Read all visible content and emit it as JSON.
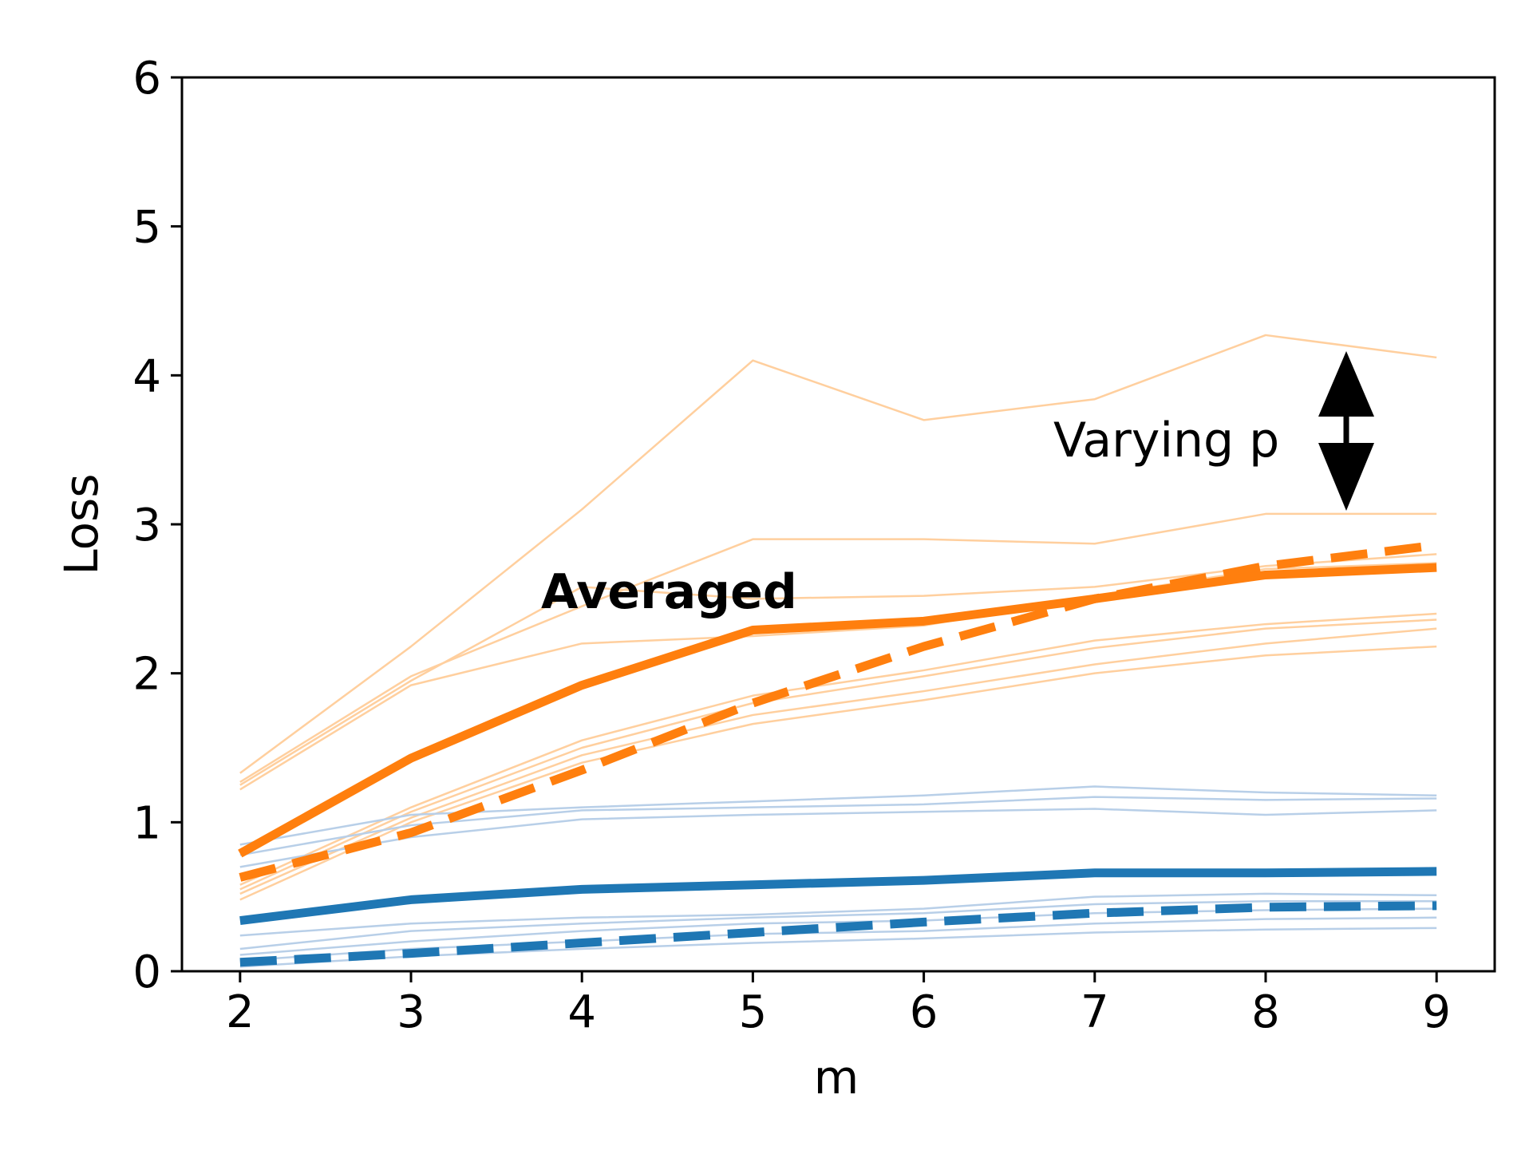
{
  "chart_data": {
    "type": "line",
    "xlabel": "m",
    "ylabel": "Loss",
    "xlim": [
      1.66,
      9.34
    ],
    "ylim": [
      0,
      6
    ],
    "xticks": [
      "2",
      "3",
      "4",
      "5",
      "6",
      "7",
      "8",
      "9"
    ],
    "yticks": [
      "0",
      "1",
      "2",
      "3",
      "4",
      "5",
      "6"
    ],
    "grid": false,
    "x": [
      2,
      3,
      4,
      5,
      6,
      7,
      8,
      9
    ],
    "colors": {
      "orange": "#ff7f0e",
      "blue": "#1f77b4",
      "orange_light": "#ffcf9e",
      "blue_light": "#b8cfe8"
    },
    "annotations": {
      "averaged": "Averaged",
      "varying": "Varying p"
    },
    "series": [
      {
        "group": "orange-thin",
        "values": [
          1.33,
          2.18,
          3.1,
          4.1,
          3.7,
          3.84,
          4.27,
          4.12
        ]
      },
      {
        "group": "orange-thin",
        "values": [
          1.27,
          1.98,
          2.45,
          2.9,
          2.9,
          2.87,
          3.07,
          3.07
        ]
      },
      {
        "group": "orange-thin",
        "values": [
          1.25,
          1.95,
          2.58,
          2.5,
          2.52,
          2.58,
          2.72,
          2.8
        ]
      },
      {
        "group": "orange-thin",
        "values": [
          1.22,
          1.92,
          2.2,
          2.25,
          2.32,
          2.52,
          2.7,
          2.74
        ]
      },
      {
        "group": "orange-thin",
        "values": [
          0.58,
          1.1,
          1.55,
          1.85,
          2.02,
          2.22,
          2.33,
          2.4
        ]
      },
      {
        "group": "orange-thin",
        "values": [
          0.55,
          1.07,
          1.5,
          1.8,
          1.98,
          2.17,
          2.3,
          2.36
        ]
      },
      {
        "group": "orange-thin",
        "values": [
          0.52,
          1.03,
          1.45,
          1.72,
          1.88,
          2.06,
          2.2,
          2.3
        ]
      },
      {
        "group": "orange-thin",
        "values": [
          0.48,
          1.0,
          1.4,
          1.66,
          1.82,
          2.0,
          2.12,
          2.18
        ]
      },
      {
        "group": "blue-thin",
        "values": [
          0.85,
          1.05,
          1.1,
          1.14,
          1.18,
          1.24,
          1.2,
          1.18
        ]
      },
      {
        "group": "blue-thin",
        "values": [
          0.78,
          0.98,
          1.08,
          1.1,
          1.12,
          1.17,
          1.15,
          1.16
        ]
      },
      {
        "group": "blue-thin",
        "values": [
          0.7,
          0.9,
          1.02,
          1.05,
          1.07,
          1.09,
          1.05,
          1.08
        ]
      },
      {
        "group": "blue-thin",
        "values": [
          0.24,
          0.32,
          0.36,
          0.38,
          0.42,
          0.5,
          0.52,
          0.51
        ]
      },
      {
        "group": "blue-thin",
        "values": [
          0.15,
          0.27,
          0.32,
          0.36,
          0.39,
          0.45,
          0.47,
          0.47
        ]
      },
      {
        "group": "blue-thin",
        "values": [
          0.11,
          0.2,
          0.27,
          0.32,
          0.34,
          0.39,
          0.41,
          0.42
        ]
      },
      {
        "group": "blue-thin",
        "values": [
          0.07,
          0.15,
          0.2,
          0.25,
          0.27,
          0.32,
          0.35,
          0.36
        ]
      },
      {
        "group": "blue-thin",
        "values": [
          0.03,
          0.1,
          0.15,
          0.19,
          0.22,
          0.26,
          0.28,
          0.29
        ]
      },
      {
        "group": "orange-solid-avg",
        "values": [
          0.79,
          1.43,
          1.92,
          2.29,
          2.35,
          2.5,
          2.66,
          2.71
        ]
      },
      {
        "group": "orange-dashed-avg",
        "values": [
          0.63,
          0.93,
          1.35,
          1.8,
          2.18,
          2.5,
          2.72,
          2.86
        ]
      },
      {
        "group": "blue-solid-avg",
        "values": [
          0.34,
          0.48,
          0.55,
          0.58,
          0.61,
          0.66,
          0.66,
          0.67
        ]
      },
      {
        "group": "blue-dashed-avg",
        "values": [
          0.06,
          0.12,
          0.19,
          0.26,
          0.33,
          0.39,
          0.43,
          0.44
        ]
      }
    ]
  }
}
